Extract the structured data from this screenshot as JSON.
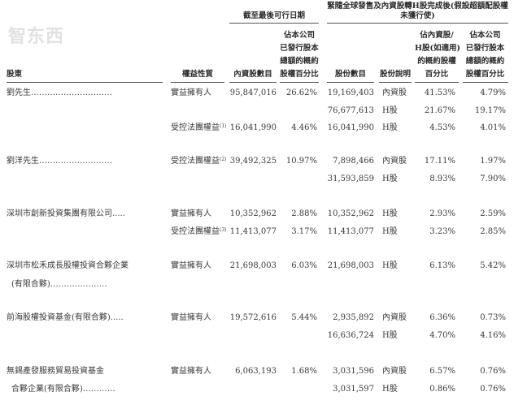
{
  "header": {
    "group1_title": "截至最後可行日期",
    "group2_title": "緊隨全球發售及內資股轉H股完成後(假設超額配股權未獲行使)",
    "columns": {
      "shareholder": "股東",
      "nature": "權益性質",
      "domestic_count": "內資股數目",
      "pct1": [
        "佔本公司",
        "已發行股本",
        "總額的概約",
        "股權百分比"
      ],
      "share_count": "股份數目",
      "share_desc": "股份說明",
      "pct2": [
        "佔內資股/",
        "H股(如適用)",
        "的概約股權",
        "百分比"
      ],
      "pct3": [
        "佔本公司",
        "已發行股本",
        "總額的概約",
        "股權百分比"
      ]
    }
  },
  "rows": [
    {
      "holder": "劉先生…………………………",
      "nature": "實益擁有人",
      "note": "",
      "dom": "95,847,016",
      "p1": "26.62%",
      "cnt": "19,169,403",
      "desc": "內資股",
      "p2": "41.53%",
      "p3": "4.79%"
    },
    {
      "holder": "",
      "nature": "",
      "note": "",
      "dom": "",
      "p1": "",
      "cnt": "76,677,613",
      "desc": "H股",
      "p2": "21.67%",
      "p3": "19.17%"
    },
    {
      "holder": "",
      "nature": "受控法團權益",
      "note": "(1)",
      "dom": "16,041,990",
      "p1": "4.46%",
      "cnt": "16,041,990",
      "desc": "H股",
      "p2": "4.53%",
      "p3": "4.01%"
    },
    {
      "holder": "劉洋先生………………………",
      "nature": "受控法團權益",
      "note": "(2)",
      "dom": "39,492,325",
      "p1": "10.97%",
      "cnt": "7,898,466",
      "desc": "內資股",
      "p2": "17.11%",
      "p3": "1.97%"
    },
    {
      "holder": "",
      "nature": "",
      "note": "",
      "dom": "",
      "p1": "",
      "cnt": "31,593,859",
      "desc": "H股",
      "p2": "8.93%",
      "p3": "7.90%"
    },
    {
      "holder": "深圳市創新投資集團有限公司.....",
      "nature": "實益擁有人",
      "note": "",
      "dom": "10,352,962",
      "p1": "2.88%",
      "cnt": "10,352,962",
      "desc": "H股",
      "p2": "2.93%",
      "p3": "2.59%"
    },
    {
      "holder": "",
      "nature": "受控法團權益",
      "note": "(3)",
      "dom": "11,413,077",
      "p1": "3.17%",
      "cnt": "11,413,077",
      "desc": "H股",
      "p2": "3.23%",
      "p3": "2.85%"
    },
    {
      "holder": "深圳市松禾成長股權投資合夥企業",
      "nature": "實益擁有人",
      "note": "",
      "dom": "21,698,003",
      "p1": "6.03%",
      "cnt": "21,698,003",
      "desc": "H股",
      "p2": "6.13%",
      "p3": "5.42%"
    },
    {
      "holder": "(有限合夥)…………………",
      "nature": "",
      "note": "",
      "dom": "",
      "p1": "",
      "cnt": "",
      "desc": "",
      "p2": "",
      "p3": "",
      "indent": true
    },
    {
      "holder": "前海股權投資基金(有限合夥).....",
      "nature": "實益擁有人",
      "note": "",
      "dom": "19,572,616",
      "p1": "5.44%",
      "cnt": "2,935,892",
      "desc": "內資股",
      "p2": "6.36%",
      "p3": "0.73%"
    },
    {
      "holder": "",
      "nature": "",
      "note": "",
      "dom": "",
      "p1": "",
      "cnt": "16,636,724",
      "desc": "H股",
      "p2": "4.70%",
      "p3": "4.16%"
    },
    {
      "holder": "無錫產發服務貿易投資基金",
      "nature": "實益擁有人",
      "note": "",
      "dom": "6,063,193",
      "p1": "1.68%",
      "cnt": "3,031,596",
      "desc": "內資股",
      "p2": "6.57%",
      "p3": "0.76%"
    },
    {
      "holder": "合夥企業(有限合夥)…………",
      "nature": "",
      "note": "",
      "dom": "",
      "p1": "",
      "cnt": "3,031,597",
      "desc": "H股",
      "p2": "0.86%",
      "p3": "0.76%",
      "indent": true
    }
  ],
  "watermark": {
    "logo_text": "智东西",
    "color": "#c8c8c8"
  }
}
